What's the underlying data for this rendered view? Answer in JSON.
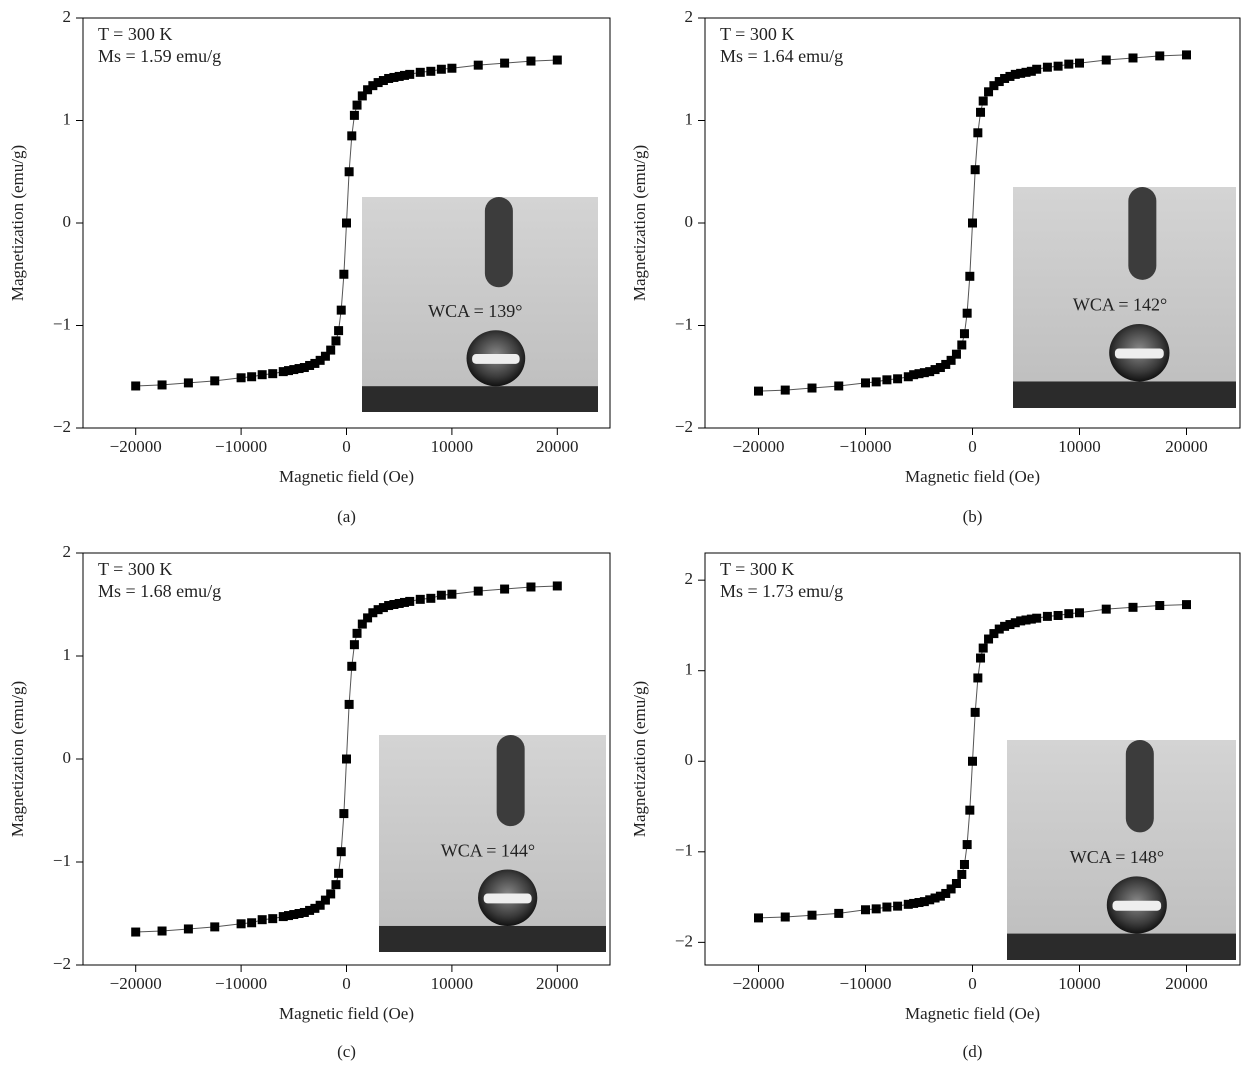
{
  "chart_data": [
    {
      "type": "line",
      "markers": "square",
      "color": "#000000",
      "panel_label": "(a)",
      "xlabel": "Magnetic field (Oe)",
      "ylabel": "Magnetization (emu/g)",
      "annotations": [
        "T = 300 K",
        "Ms = 1.59 emu/g",
        "WCA = 139°"
      ],
      "x": [
        -20000,
        -17500,
        -15000,
        -12500,
        -10000,
        -9000,
        -8000,
        -7000,
        -6000,
        -5500,
        -5000,
        -4500,
        -4000,
        -3500,
        -3000,
        -2500,
        -2000,
        -1500,
        -1000,
        -750,
        -500,
        -250,
        0,
        250,
        500,
        750,
        1000,
        1500,
        2000,
        2500,
        3000,
        3500,
        4000,
        4500,
        5000,
        5500,
        6000,
        7000,
        8000,
        9000,
        10000,
        12500,
        15000,
        17500,
        20000
      ],
      "values": [
        -1.59,
        -1.58,
        -1.56,
        -1.54,
        -1.51,
        -1.5,
        -1.48,
        -1.47,
        -1.45,
        -1.44,
        -1.43,
        -1.42,
        -1.41,
        -1.39,
        -1.37,
        -1.34,
        -1.3,
        -1.24,
        -1.15,
        -1.05,
        -0.85,
        -0.5,
        0,
        0.5,
        0.85,
        1.05,
        1.15,
        1.24,
        1.3,
        1.34,
        1.37,
        1.39,
        1.41,
        1.42,
        1.43,
        1.44,
        1.45,
        1.47,
        1.48,
        1.5,
        1.51,
        1.54,
        1.56,
        1.58,
        1.59
      ],
      "xlim": [
        -25000,
        25000
      ],
      "ylim": [
        -2,
        2
      ],
      "xticks": [
        {
          "value": -20000,
          "label": "−20000"
        },
        {
          "value": -10000,
          "label": "−10000"
        },
        0,
        10000,
        20000
      ],
      "yticks": [
        {
          "value": -2,
          "label": "−2"
        },
        {
          "value": -1,
          "label": "−1"
        },
        0,
        1,
        2
      ]
    },
    {
      "type": "line",
      "markers": "square",
      "color": "#000000",
      "panel_label": "(b)",
      "xlabel": "Magnetic field (Oe)",
      "ylabel": "Magnetization (emu/g)",
      "annotations": [
        "T = 300 K",
        "Ms = 1.64 emu/g",
        "WCA = 142°"
      ],
      "x": [
        -20000,
        -17500,
        -15000,
        -12500,
        -10000,
        -9000,
        -8000,
        -7000,
        -6000,
        -5500,
        -5000,
        -4500,
        -4000,
        -3500,
        -3000,
        -2500,
        -2000,
        -1500,
        -1000,
        -750,
        -500,
        -250,
        0,
        250,
        500,
        750,
        1000,
        1500,
        2000,
        2500,
        3000,
        3500,
        4000,
        4500,
        5000,
        5500,
        6000,
        7000,
        8000,
        9000,
        10000,
        12500,
        15000,
        17500,
        20000
      ],
      "values": [
        -1.64,
        -1.63,
        -1.61,
        -1.59,
        -1.56,
        -1.55,
        -1.53,
        -1.52,
        -1.5,
        -1.48,
        -1.47,
        -1.46,
        -1.45,
        -1.43,
        -1.41,
        -1.38,
        -1.34,
        -1.28,
        -1.19,
        -1.08,
        -0.88,
        -0.52,
        0,
        0.52,
        0.88,
        1.08,
        1.19,
        1.28,
        1.34,
        1.38,
        1.41,
        1.43,
        1.45,
        1.46,
        1.47,
        1.48,
        1.5,
        1.52,
        1.53,
        1.55,
        1.56,
        1.59,
        1.61,
        1.63,
        1.64
      ],
      "xlim": [
        -25000,
        25000
      ],
      "ylim": [
        -2,
        2
      ],
      "xticks": [
        {
          "value": -20000,
          "label": "−20000"
        },
        {
          "value": -10000,
          "label": "−10000"
        },
        0,
        10000,
        20000
      ],
      "yticks": [
        {
          "value": -2,
          "label": "−2"
        },
        {
          "value": -1,
          "label": "−1"
        },
        0,
        1,
        2
      ]
    },
    {
      "type": "line",
      "markers": "square",
      "color": "#000000",
      "panel_label": "(c)",
      "xlabel": "Magnetic field (Oe)",
      "ylabel": "Magnetization (emu/g)",
      "annotations": [
        "T = 300 K",
        "Ms = 1.68 emu/g",
        "WCA = 144°"
      ],
      "x": [
        -20000,
        -17500,
        -15000,
        -12500,
        -10000,
        -9000,
        -8000,
        -7000,
        -6000,
        -5500,
        -5000,
        -4500,
        -4000,
        -3500,
        -3000,
        -2500,
        -2000,
        -1500,
        -1000,
        -750,
        -500,
        -250,
        0,
        250,
        500,
        750,
        1000,
        1500,
        2000,
        2500,
        3000,
        3500,
        4000,
        4500,
        5000,
        5500,
        6000,
        7000,
        8000,
        9000,
        10000,
        12500,
        15000,
        17500,
        20000
      ],
      "values": [
        -1.68,
        -1.67,
        -1.65,
        -1.63,
        -1.6,
        -1.59,
        -1.56,
        -1.55,
        -1.53,
        -1.52,
        -1.51,
        -1.5,
        -1.49,
        -1.47,
        -1.45,
        -1.42,
        -1.37,
        -1.31,
        -1.22,
        -1.11,
        -0.9,
        -0.53,
        0,
        0.53,
        0.9,
        1.11,
        1.22,
        1.31,
        1.37,
        1.42,
        1.45,
        1.47,
        1.49,
        1.5,
        1.51,
        1.52,
        1.53,
        1.55,
        1.56,
        1.59,
        1.6,
        1.63,
        1.65,
        1.67,
        1.68
      ],
      "xlim": [
        -25000,
        25000
      ],
      "ylim": [
        -2,
        2
      ],
      "xticks": [
        {
          "value": -20000,
          "label": "−20000"
        },
        {
          "value": -10000,
          "label": "−10000"
        },
        0,
        10000,
        20000
      ],
      "yticks": [
        {
          "value": -2,
          "label": "−2"
        },
        {
          "value": -1,
          "label": "−1"
        },
        0,
        1,
        2
      ]
    },
    {
      "type": "line",
      "markers": "square",
      "color": "#000000",
      "panel_label": "(d)",
      "xlabel": "Magnetic field (Oe)",
      "ylabel": "Magnetization (emu/g)",
      "annotations": [
        "T = 300 K",
        "Ms = 1.73 emu/g",
        "WCA = 148°"
      ],
      "x": [
        -20000,
        -17500,
        -15000,
        -12500,
        -10000,
        -9000,
        -8000,
        -7000,
        -6000,
        -5500,
        -5000,
        -4500,
        -4000,
        -3500,
        -3000,
        -2500,
        -2000,
        -1500,
        -1000,
        -750,
        -500,
        -250,
        0,
        250,
        500,
        750,
        1000,
        1500,
        2000,
        2500,
        3000,
        3500,
        4000,
        4500,
        5000,
        5500,
        6000,
        7000,
        8000,
        9000,
        10000,
        12500,
        15000,
        17500,
        20000
      ],
      "values": [
        -1.73,
        -1.72,
        -1.7,
        -1.68,
        -1.64,
        -1.63,
        -1.61,
        -1.6,
        -1.58,
        -1.57,
        -1.56,
        -1.55,
        -1.53,
        -1.51,
        -1.49,
        -1.46,
        -1.41,
        -1.35,
        -1.25,
        -1.14,
        -0.92,
        -0.54,
        0,
        0.54,
        0.92,
        1.14,
        1.25,
        1.35,
        1.41,
        1.46,
        1.49,
        1.51,
        1.53,
        1.55,
        1.56,
        1.57,
        1.58,
        1.6,
        1.61,
        1.63,
        1.64,
        1.68,
        1.7,
        1.72,
        1.73
      ],
      "xlim": [
        -25000,
        25000
      ],
      "ylim": [
        -2.25,
        2.3
      ],
      "xticks": [
        {
          "value": -20000,
          "label": "−20000"
        },
        {
          "value": -10000,
          "label": "−10000"
        },
        0,
        10000,
        20000
      ],
      "yticks": [
        {
          "value": -2,
          "label": "−2"
        },
        {
          "value": -1,
          "label": "−1"
        },
        0,
        1,
        2
      ]
    }
  ]
}
